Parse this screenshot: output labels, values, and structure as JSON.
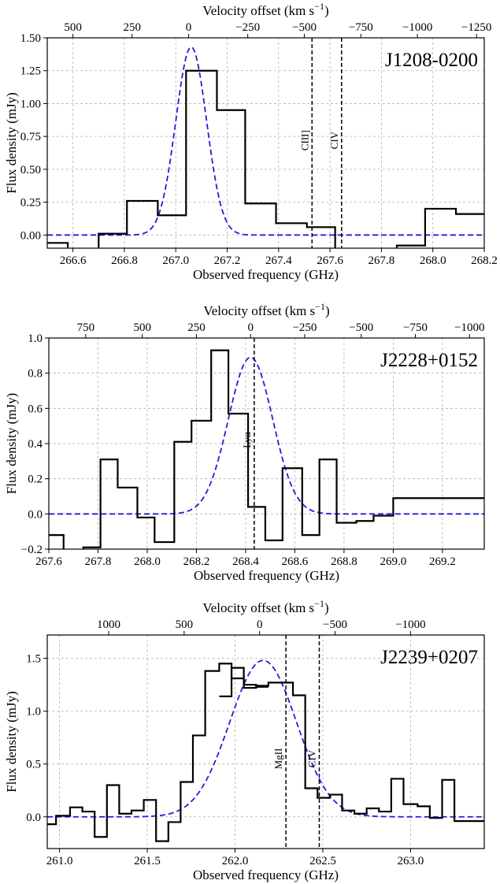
{
  "chart_data": [
    {
      "type": "line",
      "label": "J1208-0200",
      "xlabel": "Observed frequency (GHz)",
      "ylabel": "Flux density (mJy)",
      "top_label": "Velocity offset (km s",
      "top_label_sup": "−1",
      "top_label_end": ")",
      "xlim": [
        266.5,
        268.2
      ],
      "ylim": [
        -0.1,
        1.5
      ],
      "xticks": [
        266.6,
        266.8,
        267.0,
        267.2,
        267.4,
        267.6,
        267.8,
        268.0,
        268.2
      ],
      "xtick_labels": [
        "266.6",
        "266.8",
        "267.0",
        "267.2",
        "267.4",
        "267.6",
        "267.8",
        "268.0",
        "268.2"
      ],
      "yticks": [
        0.0,
        0.25,
        0.5,
        0.75,
        1.0,
        1.25,
        1.5
      ],
      "ytick_labels": [
        "0.00",
        "0.25",
        "0.50",
        "0.75",
        "1.00",
        "1.25",
        "1.50"
      ],
      "top_ticks": [
        {
          "label": "500",
          "x": 266.6
        },
        {
          "label": "250",
          "x": 266.83
        },
        {
          "label": "0",
          "x": 267.05
        },
        {
          "label": "−250",
          "x": 267.28
        },
        {
          "label": "−500",
          "x": 267.5
        },
        {
          "label": "−750",
          "x": 267.72
        },
        {
          "label": "−1000",
          "x": 267.94
        },
        {
          "label": "−1250",
          "x": 268.17
        }
      ],
      "spectrum": {
        "edges": [
          266.46,
          266.58,
          266.7,
          266.81,
          266.93,
          267.04,
          267.16,
          267.27,
          267.39,
          267.51,
          267.62,
          267.74,
          267.86,
          267.97,
          268.09,
          268.21
        ],
        "values": [
          -0.06,
          -0.16,
          0.01,
          0.26,
          0.15,
          1.25,
          0.95,
          0.24,
          0.09,
          0.06,
          -0.11,
          -0.13,
          -0.08,
          0.2,
          0.16,
          0.24
        ]
      },
      "gaussian": {
        "amplitude": 1.43,
        "center": 267.06,
        "sigma": 0.06
      },
      "lines": [
        {
          "name": "CIII]",
          "x": 267.53
        },
        {
          "name": "CIV",
          "x": 267.645
        }
      ]
    },
    {
      "type": "line",
      "label": "J2228+0152",
      "xlabel": "Observed frequency (GHz)",
      "ylabel": "Flux density (mJy)",
      "top_label": "Velocity offset (km s",
      "top_label_sup": "−1",
      "top_label_end": ")",
      "xlim": [
        267.6,
        269.37
      ],
      "ylim": [
        -0.2,
        1.0
      ],
      "xticks": [
        267.6,
        267.8,
        268.0,
        268.2,
        268.4,
        268.6,
        268.8,
        269.0,
        269.2
      ],
      "xtick_labels": [
        "267.6",
        "267.8",
        "268.0",
        "268.2",
        "268.4",
        "268.6",
        "268.8",
        "269.0",
        "269.2"
      ],
      "yticks": [
        -0.2,
        0.0,
        0.2,
        0.4,
        0.6,
        0.8,
        1.0
      ],
      "ytick_labels": [
        "−0.2",
        "0.0",
        "0.2",
        "0.4",
        "0.6",
        "0.8",
        "1.0"
      ],
      "top_ticks": [
        {
          "label": "750",
          "x": 267.75
        },
        {
          "label": "500",
          "x": 267.98
        },
        {
          "label": "250",
          "x": 268.2
        },
        {
          "label": "0",
          "x": 268.42
        },
        {
          "label": "−250",
          "x": 268.64
        },
        {
          "label": "−500",
          "x": 268.87
        },
        {
          "label": "−750",
          "x": 269.09
        },
        {
          "label": "−1000",
          "x": 269.31
        }
      ],
      "spectrum": {
        "edges": [
          267.59,
          267.66,
          267.74,
          267.81,
          267.88,
          267.96,
          268.03,
          268.11,
          268.18,
          268.26,
          268.33,
          268.41,
          268.48,
          268.55,
          268.63,
          268.7,
          268.77,
          268.85,
          268.92,
          269.0,
          269.07,
          269.14,
          269.22,
          269.29,
          269.37
        ],
        "values": [
          -0.12,
          -0.26,
          -0.19,
          0.31,
          0.15,
          -0.02,
          -0.16,
          0.41,
          0.53,
          0.93,
          0.57,
          0.04,
          -0.15,
          0.26,
          -0.12,
          0.31,
          -0.05,
          -0.04,
          -0.01,
          0.09,
          0.09,
          0.09,
          0.09,
          0.09
        ]
      },
      "gaussian": {
        "amplitude": 0.89,
        "center": 268.42,
        "sigma": 0.09
      },
      "lines": [
        {
          "name": "Lyα",
          "x": 268.435
        }
      ]
    },
    {
      "type": "line",
      "label": "J2239+0207",
      "xlabel": "Observed frequency (GHz)",
      "ylabel": "Flux density (mJy)",
      "top_label": "Velocity offset (km s",
      "top_label_sup": "−1",
      "top_label_end": ")",
      "xlim": [
        260.93,
        263.42
      ],
      "ylim": [
        -0.3,
        1.72
      ],
      "xticks": [
        261.0,
        261.5,
        262.0,
        262.5,
        263.0
      ],
      "xtick_labels": [
        "261.0",
        "261.5",
        "262.0",
        "262.5",
        "263.0"
      ],
      "yticks": [
        0.0,
        0.5,
        1.0,
        1.5
      ],
      "ytick_labels": [
        "0.0",
        "0.5",
        "1.0",
        "1.5"
      ],
      "top_ticks": [
        {
          "label": "1000",
          "x": 261.28
        },
        {
          "label": "500",
          "x": 261.71
        },
        {
          "label": "0",
          "x": 262.14
        },
        {
          "label": "−500",
          "x": 262.57
        },
        {
          "label": "−1000",
          "x": 263.0
        }
      ],
      "spectrum": {
        "edges": [
          260.9,
          260.98,
          261.06,
          261.13,
          261.2,
          261.27,
          261.34,
          261.41,
          261.48,
          261.55,
          261.62,
          261.69,
          261.76,
          261.83,
          261.91,
          261.98,
          262.05,
          262.12,
          262.19,
          262.26,
          262.33,
          262.4,
          262.47,
          262.54,
          262.61,
          262.68,
          262.75,
          262.82,
          262.89,
          262.96,
          263.04,
          263.11,
          263.18,
          263.25,
          263.32,
          263.39,
          263.45
        ],
        "values": [
          -0.07,
          0.01,
          0.09,
          0.05,
          -0.19,
          0.3,
          0.03,
          0.06,
          0.16,
          -0.23,
          -0.05,
          0.33,
          0.77,
          1.38,
          1.45,
          1.31,
          1.25,
          1.24,
          1.27,
          1.27,
          1.15,
          0.27,
          0.18,
          0.21,
          0.06,
          0.03,
          0.08,
          0.05,
          0.36,
          0.12,
          0.1,
          -0.01,
          0.35,
          -0.04,
          -0.04,
          -0.04
        ]
      },
      "spectrum2": {
        "edges": [
          261.91,
          261.98,
          262.05,
          262.12,
          262.19
        ],
        "values": [
          1.14,
          1.41,
          1.22,
          1.23
        ]
      },
      "gaussian": {
        "amplitude": 1.48,
        "center": 262.16,
        "sigma": 0.19
      },
      "lines": [
        {
          "name": "MgII",
          "x": 262.29
        },
        {
          "name": "CIV",
          "x": 262.48
        }
      ]
    }
  ]
}
